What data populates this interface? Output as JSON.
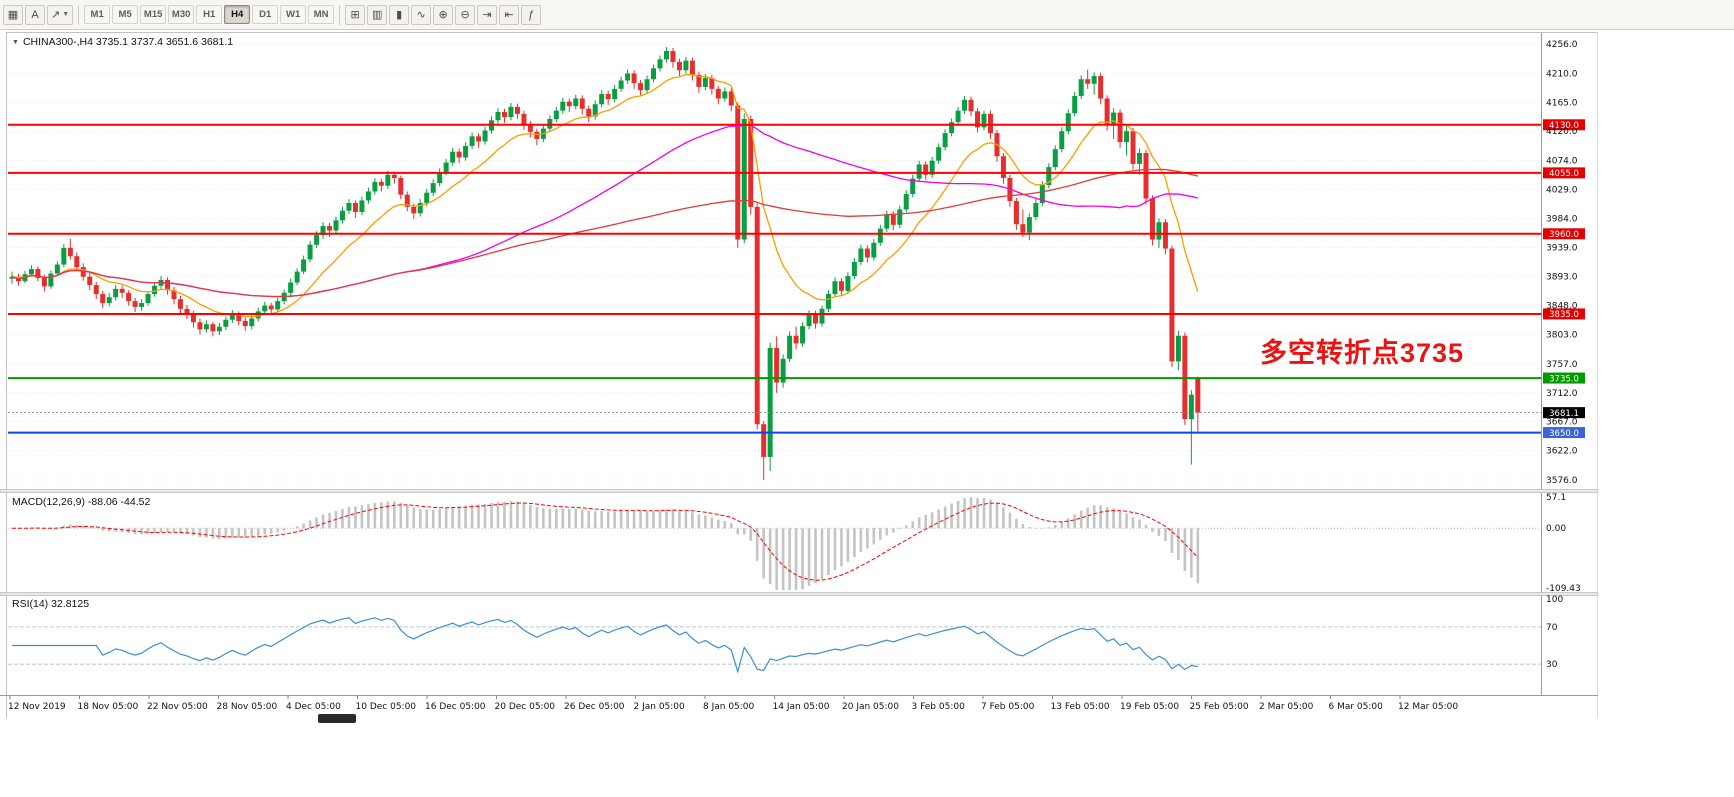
{
  "toolbar": {
    "left_buttons": [
      {
        "name": "grid-icon",
        "glyph": "▦"
      },
      {
        "name": "text-tool-button",
        "glyph": "A"
      },
      {
        "name": "arrows-tool-dropdown-button",
        "glyph": "↗",
        "caret": true
      }
    ],
    "timeframes": [
      "M1",
      "M5",
      "M15",
      "M30",
      "H1",
      "H4",
      "D1",
      "W1",
      "MN"
    ],
    "active_timeframe": "H4",
    "right_buttons": [
      {
        "name": "new-order-icon",
        "glyph": "⊞"
      },
      {
        "name": "chart-bars-icon",
        "glyph": "▥"
      },
      {
        "name": "chart-candles-icon",
        "glyph": "▮"
      },
      {
        "name": "chart-line-icon",
        "glyph": "∿"
      },
      {
        "name": "zoom-in-icon",
        "glyph": "⊕"
      },
      {
        "name": "zoom-out-icon",
        "glyph": "⊖"
      },
      {
        "name": "auto-scroll-icon",
        "glyph": "⇥"
      },
      {
        "name": "chart-shift-icon",
        "glyph": "⇤"
      },
      {
        "name": "indicators-icon",
        "glyph": "ƒ"
      }
    ]
  },
  "header": {
    "menu_glyph": "▼",
    "title": "CHINA300-,H4 3735.1 3737.4 3651.6 3681.1"
  },
  "pane_labels": {
    "macd": "MACD(12,26,9) -88.06 -44.52",
    "rsi": "RSI(14) 32.8125"
  },
  "annotation": {
    "text": "多空转折点3735",
    "color": "#e81414"
  },
  "chart_data": {
    "type": "candlestick",
    "symbol": "CHINA300-",
    "timeframe": "H4",
    "current_bar": {
      "open": 3735.1,
      "high": 3737.4,
      "low": 3651.6,
      "close": 3681.1
    },
    "y_range": [
      3562,
      4270
    ],
    "colors": {
      "up": "#0a9e42",
      "down": "#e62e2e",
      "grid": "#e9e9e9",
      "axis_text": "#111111"
    },
    "y_ticks": [
      "4256.0",
      "4210.0",
      "4165.0",
      "4120.0",
      "4074.0",
      "4029.0",
      "3984.0",
      "3939.0",
      "3893.0",
      "3848.0",
      "3803.0",
      "3757.0",
      "3712.0",
      "3667.0",
      "3622.0",
      "3576.0"
    ],
    "x_labels": [
      "12 Nov 2019",
      "18 Nov 05:00",
      "22 Nov 05:00",
      "28 Nov 05:00",
      "4 Dec 05:00",
      "10 Dec 05:00",
      "16 Dec 05:00",
      "20 Dec 05:00",
      "26 Dec 05:00",
      "2 Jan 05:00",
      "8 Jan 05:00",
      "14 Jan 05:00",
      "20 Jan 05:00",
      "3 Feb 05:00",
      "7 Feb 05:00",
      "13 Feb 05:00",
      "19 Feb 05:00",
      "25 Feb 05:00",
      "2 Mar 05:00",
      "6 Mar 05:00",
      "12 Mar 05:00"
    ],
    "hlines": [
      {
        "price": 4130.0,
        "color": "#ff0000",
        "width": 2,
        "badge": "4130.0",
        "badge_bg": "#e30000"
      },
      {
        "price": 4055.0,
        "color": "#ff0000",
        "width": 2,
        "badge": "4055.0",
        "badge_bg": "#e30000"
      },
      {
        "price": 3960.0,
        "color": "#ff0000",
        "width": 2,
        "badge": "3960.0",
        "badge_bg": "#e30000"
      },
      {
        "price": 3835.0,
        "color": "#ff0000",
        "width": 2,
        "badge": "3835.0",
        "badge_bg": "#e30000"
      },
      {
        "price": 3735.0,
        "color": "#009a00",
        "width": 2,
        "badge": "3735.0",
        "badge_bg": "#009a00"
      },
      {
        "price": 3650.0,
        "color": "#0a46e8",
        "width": 2,
        "badge": "3650.0",
        "badge_bg": "#3b64d8"
      }
    ],
    "current_price": {
      "value": 3681.1,
      "badge": "3681.1",
      "badge_bg": "#000000"
    },
    "moving_averages": [
      {
        "name": "fast",
        "method": "ema",
        "period": 13,
        "color": "#ff9c00"
      },
      {
        "name": "mid",
        "method": "sma",
        "period": 60,
        "color": "#f000f0"
      },
      {
        "name": "slow",
        "method": "sma",
        "period": 130,
        "color": "#e03c3c"
      }
    ],
    "indicators": {
      "macd": {
        "fast": 12,
        "slow": 26,
        "signal": 9,
        "current_main": "-88.06",
        "current_signal": "-44.52",
        "range": [
          -109.43,
          57.1
        ],
        "axis_labels": [
          "57.1",
          "0.00",
          "-109.43"
        ],
        "hist_color": "#c4c4c4",
        "signal_color": "#ff0000"
      },
      "rsi": {
        "period": 14,
        "current": "32.8125",
        "range": [
          0,
          100
        ],
        "levels": [
          70,
          30
        ],
        "axis_labels": [
          "100",
          "70",
          "30"
        ],
        "color": "#3e8ed0",
        "level_color": "#aab0cc"
      }
    },
    "candles": [
      [
        3890,
        3901,
        3882,
        3893
      ],
      [
        3893,
        3898,
        3879,
        3886
      ],
      [
        3886,
        3902,
        3883,
        3897
      ],
      [
        3897,
        3911,
        3893,
        3905
      ],
      [
        3905,
        3909,
        3886,
        3891
      ],
      [
        3891,
        3896,
        3870,
        3878
      ],
      [
        3878,
        3903,
        3874,
        3898
      ],
      [
        3898,
        3917,
        3895,
        3912
      ],
      [
        3912,
        3944,
        3908,
        3938
      ],
      [
        3938,
        3952,
        3920,
        3925
      ],
      [
        3925,
        3931,
        3903,
        3908
      ],
      [
        3908,
        3914,
        3887,
        3893
      ],
      [
        3893,
        3899,
        3872,
        3880
      ],
      [
        3880,
        3885,
        3858,
        3866
      ],
      [
        3866,
        3871,
        3844,
        3852
      ],
      [
        3852,
        3868,
        3847,
        3861
      ],
      [
        3861,
        3880,
        3856,
        3874
      ],
      [
        3874,
        3879,
        3860,
        3868
      ],
      [
        3868,
        3872,
        3848,
        3855
      ],
      [
        3855,
        3860,
        3838,
        3846
      ],
      [
        3846,
        3858,
        3840,
        3852
      ],
      [
        3852,
        3871,
        3848,
        3866
      ],
      [
        3866,
        3885,
        3862,
        3879
      ],
      [
        3879,
        3894,
        3874,
        3888
      ],
      [
        3888,
        3892,
        3865,
        3872
      ],
      [
        3872,
        3877,
        3850,
        3858
      ],
      [
        3858,
        3863,
        3836,
        3843
      ],
      [
        3843,
        3849,
        3827,
        3835
      ],
      [
        3835,
        3840,
        3814,
        3822
      ],
      [
        3822,
        3828,
        3803,
        3811
      ],
      [
        3811,
        3825,
        3806,
        3819
      ],
      [
        3819,
        3823,
        3800,
        3808
      ],
      [
        3808,
        3821,
        3802,
        3815
      ],
      [
        3815,
        3831,
        3810,
        3826
      ],
      [
        3826,
        3841,
        3821,
        3835
      ],
      [
        3835,
        3839,
        3817,
        3824
      ],
      [
        3824,
        3829,
        3809,
        3816
      ],
      [
        3816,
        3833,
        3811,
        3828
      ],
      [
        3828,
        3845,
        3823,
        3839
      ],
      [
        3839,
        3854,
        3833,
        3848
      ],
      [
        3848,
        3852,
        3835,
        3842
      ],
      [
        3842,
        3860,
        3838,
        3855
      ],
      [
        3855,
        3873,
        3850,
        3868
      ],
      [
        3868,
        3890,
        3863,
        3884
      ],
      [
        3884,
        3906,
        3880,
        3901
      ],
      [
        3901,
        3926,
        3897,
        3920
      ],
      [
        3920,
        3949,
        3916,
        3943
      ],
      [
        3943,
        3964,
        3938,
        3958
      ],
      [
        3958,
        3978,
        3952,
        3972
      ],
      [
        3972,
        3977,
        3955,
        3965
      ],
      [
        3965,
        3987,
        3960,
        3981
      ],
      [
        3981,
        4002,
        3976,
        3996
      ],
      [
        3996,
        4014,
        3991,
        4008
      ],
      [
        4008,
        4012,
        3985,
        3994
      ],
      [
        3994,
        4018,
        3989,
        4012
      ],
      [
        4012,
        4032,
        4007,
        4026
      ],
      [
        4026,
        4047,
        4021,
        4041
      ],
      [
        4041,
        4046,
        4026,
        4035
      ],
      [
        4035,
        4058,
        4030,
        4052
      ],
      [
        4052,
        4057,
        4038,
        4047
      ],
      [
        4047,
        4051,
        4014,
        4021
      ],
      [
        4021,
        4026,
        3995,
        4002
      ],
      [
        4002,
        4007,
        3983,
        3992
      ],
      [
        3992,
        4014,
        3987,
        4008
      ],
      [
        4008,
        4030,
        4003,
        4024
      ],
      [
        4024,
        4045,
        4019,
        4039
      ],
      [
        4039,
        4062,
        4034,
        4056
      ],
      [
        4056,
        4077,
        4051,
        4071
      ],
      [
        4071,
        4094,
        4066,
        4088
      ],
      [
        4088,
        4093,
        4070,
        4079
      ],
      [
        4079,
        4103,
        4074,
        4097
      ],
      [
        4097,
        4118,
        4092,
        4112
      ],
      [
        4112,
        4117,
        4094,
        4104
      ],
      [
        4104,
        4127,
        4099,
        4121
      ],
      [
        4121,
        4143,
        4116,
        4137
      ],
      [
        4137,
        4156,
        4132,
        4150
      ],
      [
        4150,
        4155,
        4133,
        4142
      ],
      [
        4142,
        4164,
        4137,
        4158
      ],
      [
        4158,
        4163,
        4139,
        4147
      ],
      [
        4147,
        4152,
        4122,
        4131
      ],
      [
        4131,
        4136,
        4110,
        4119
      ],
      [
        4119,
        4124,
        4098,
        4108
      ],
      [
        4108,
        4130,
        4103,
        4124
      ],
      [
        4124,
        4145,
        4119,
        4139
      ],
      [
        4139,
        4158,
        4134,
        4152
      ],
      [
        4152,
        4172,
        4147,
        4166
      ],
      [
        4166,
        4171,
        4150,
        4159
      ],
      [
        4159,
        4177,
        4154,
        4171
      ],
      [
        4171,
        4176,
        4146,
        4155
      ],
      [
        4155,
        4160,
        4134,
        4143
      ],
      [
        4143,
        4168,
        4138,
        4162
      ],
      [
        4162,
        4184,
        4157,
        4178
      ],
      [
        4178,
        4183,
        4161,
        4170
      ],
      [
        4170,
        4192,
        4165,
        4186
      ],
      [
        4186,
        4205,
        4181,
        4199
      ],
      [
        4199,
        4216,
        4194,
        4210
      ],
      [
        4210,
        4215,
        4186,
        4195
      ],
      [
        4195,
        4200,
        4175,
        4184
      ],
      [
        4184,
        4207,
        4179,
        4201
      ],
      [
        4201,
        4224,
        4196,
        4218
      ],
      [
        4218,
        4238,
        4213,
        4232
      ],
      [
        4232,
        4251,
        4227,
        4245
      ],
      [
        4245,
        4250,
        4219,
        4228
      ],
      [
        4228,
        4233,
        4206,
        4215
      ],
      [
        4215,
        4236,
        4210,
        4230
      ],
      [
        4230,
        4235,
        4199,
        4208
      ],
      [
        4208,
        4213,
        4180,
        4189
      ],
      [
        4189,
        4209,
        4184,
        4203
      ],
      [
        4203,
        4208,
        4177,
        4186
      ],
      [
        4186,
        4191,
        4162,
        4171
      ],
      [
        4171,
        4188,
        4166,
        4182
      ],
      [
        4182,
        4187,
        4151,
        4160
      ],
      [
        4160,
        4165,
        3938,
        3951
      ],
      [
        3951,
        4148,
        3945,
        4139
      ],
      [
        4139,
        4144,
        3990,
        4002
      ],
      [
        4002,
        4007,
        3655,
        3663
      ],
      [
        3663,
        3668,
        3576,
        3612
      ],
      [
        3612,
        3790,
        3590,
        3782
      ],
      [
        3782,
        3800,
        3712,
        3728
      ],
      [
        3728,
        3772,
        3720,
        3765
      ],
      [
        3765,
        3808,
        3760,
        3801
      ],
      [
        3801,
        3815,
        3780,
        3789
      ],
      [
        3789,
        3822,
        3784,
        3816
      ],
      [
        3816,
        3841,
        3811,
        3835
      ],
      [
        3835,
        3840,
        3812,
        3820
      ],
      [
        3820,
        3848,
        3815,
        3843
      ],
      [
        3843,
        3872,
        3838,
        3866
      ],
      [
        3866,
        3892,
        3861,
        3886
      ],
      [
        3886,
        3891,
        3863,
        3871
      ],
      [
        3871,
        3900,
        3866,
        3894
      ],
      [
        3894,
        3922,
        3889,
        3916
      ],
      [
        3916,
        3943,
        3911,
        3937
      ],
      [
        3937,
        3942,
        3915,
        3923
      ],
      [
        3923,
        3952,
        3918,
        3946
      ],
      [
        3946,
        3974,
        3941,
        3968
      ],
      [
        3968,
        3996,
        3963,
        3990
      ],
      [
        3990,
        3995,
        3966,
        3974
      ],
      [
        3974,
        4004,
        3969,
        3998
      ],
      [
        3998,
        4028,
        3993,
        4022
      ],
      [
        4022,
        4052,
        4017,
        4046
      ],
      [
        4046,
        4074,
        4041,
        4068
      ],
      [
        4068,
        4073,
        4044,
        4052
      ],
      [
        4052,
        4080,
        4047,
        4074
      ],
      [
        4074,
        4101,
        4069,
        4095
      ],
      [
        4095,
        4123,
        4090,
        4117
      ],
      [
        4117,
        4140,
        4112,
        4134
      ],
      [
        4134,
        4158,
        4129,
        4152
      ],
      [
        4152,
        4175,
        4147,
        4169
      ],
      [
        4169,
        4174,
        4143,
        4151
      ],
      [
        4151,
        4156,
        4118,
        4126
      ],
      [
        4126,
        4152,
        4121,
        4147
      ],
      [
        4147,
        4152,
        4108,
        4117
      ],
      [
        4117,
        4122,
        4072,
        4081
      ],
      [
        4081,
        4086,
        4038,
        4047
      ],
      [
        4047,
        4052,
        4002,
        4011
      ],
      [
        4011,
        4016,
        3966,
        3975
      ],
      [
        3975,
        3998,
        3955,
        3962
      ],
      [
        3962,
        3992,
        3950,
        3986
      ],
      [
        3986,
        4014,
        3981,
        4008
      ],
      [
        4008,
        4042,
        4003,
        4036
      ],
      [
        4036,
        4070,
        4031,
        4064
      ],
      [
        4064,
        4098,
        4059,
        4092
      ],
      [
        4092,
        4126,
        4087,
        4120
      ],
      [
        4120,
        4154,
        4115,
        4148
      ],
      [
        4148,
        4181,
        4143,
        4175
      ],
      [
        4175,
        4207,
        4170,
        4201
      ],
      [
        4201,
        4216,
        4186,
        4194
      ],
      [
        4194,
        4212,
        4177,
        4206
      ],
      [
        4206,
        4211,
        4162,
        4171
      ],
      [
        4171,
        4176,
        4121,
        4130
      ],
      [
        4130,
        4156,
        4108,
        4149
      ],
      [
        4149,
        4154,
        4094,
        4103
      ],
      [
        4103,
        4128,
        4082,
        4120
      ],
      [
        4120,
        4125,
        4060,
        4069
      ],
      [
        4069,
        4093,
        4052,
        4086
      ],
      [
        4086,
        4091,
        4006,
        4015
      ],
      [
        4015,
        4020,
        3942,
        3951
      ],
      [
        3951,
        3984,
        3938,
        3978
      ],
      [
        3978,
        3983,
        3928,
        3937
      ],
      [
        3937,
        3942,
        3752,
        3761
      ],
      [
        3761,
        3809,
        3747,
        3801
      ],
      [
        3801,
        3806,
        3662,
        3671
      ],
      [
        3671,
        3716,
        3600,
        3709
      ],
      [
        3735.1,
        3737.4,
        3651.6,
        3681.1
      ]
    ]
  }
}
